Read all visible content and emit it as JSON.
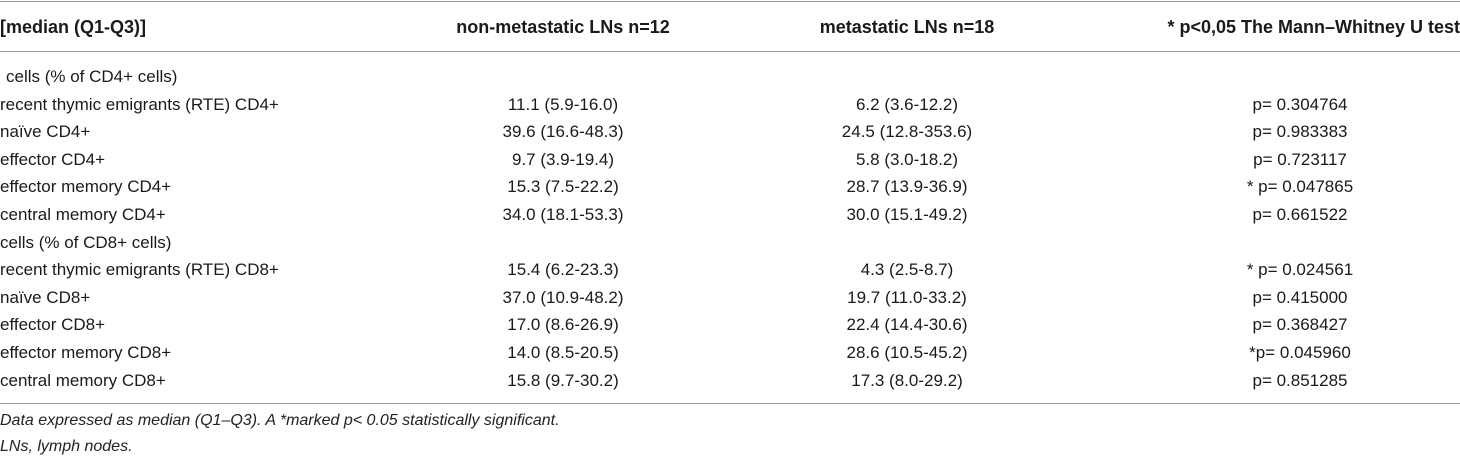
{
  "table": {
    "headers": [
      "[median (Q1-Q3)]",
      "non-metastatic LNs n=12",
      "metastatic LNs n=18",
      "* p<0,05 The Mann–Whitney U test"
    ],
    "rows": [
      {
        "type": "section",
        "cells": [
          " cells (% of CD4+ cells)",
          "",
          "",
          ""
        ]
      },
      {
        "type": "data",
        "cells": [
          "recent thymic emigrants (RTE) CD4+",
          "11.1 (5.9-16.0)",
          "6.2 (3.6-12.2)",
          "p= 0.304764"
        ]
      },
      {
        "type": "data",
        "cells": [
          "naïve CD4+",
          "39.6 (16.6-48.3)",
          "24.5 (12.8-353.6)",
          "p= 0.983383"
        ]
      },
      {
        "type": "data",
        "cells": [
          "effector CD4+",
          "9.7 (3.9-19.4)",
          "5.8 (3.0-18.2)",
          "p= 0.723117"
        ]
      },
      {
        "type": "data",
        "cells": [
          "effector memory CD4+",
          "15.3 (7.5-22.2)",
          "28.7 (13.9-36.9)",
          "* p= 0.047865"
        ]
      },
      {
        "type": "data",
        "cells": [
          "central memory CD4+",
          "34.0 (18.1-53.3)",
          "30.0 (15.1-49.2)",
          "p= 0.661522"
        ]
      },
      {
        "type": "section",
        "cells": [
          "cells (% of CD8+ cells)",
          "",
          "",
          ""
        ]
      },
      {
        "type": "data",
        "cells": [
          "recent thymic emigrants (RTE) CD8+",
          "15.4 (6.2-23.3)",
          "4.3 (2.5-8.7)",
          "* p= 0.024561"
        ]
      },
      {
        "type": "data",
        "cells": [
          "naïve CD8+",
          "37.0 (10.9-48.2)",
          "19.7 (11.0-33.2)",
          "p= 0.415000"
        ]
      },
      {
        "type": "data",
        "cells": [
          "effector CD8+",
          "17.0 (8.6-26.9)",
          "22.4 (14.4-30.6)",
          "p= 0.368427"
        ]
      },
      {
        "type": "data",
        "cells": [
          "effector memory CD8+",
          "14.0 (8.5-20.5)",
          "28.6 (10.5-45.2)",
          "*p= 0.045960"
        ]
      },
      {
        "type": "data",
        "cells": [
          "central memory CD8+",
          "15.8 (9.7-30.2)",
          "17.3 (8.0-29.2)",
          "p= 0.851285"
        ]
      }
    ]
  },
  "footnotes": [
    "Data expressed as median (Q1–Q3). A *marked p< 0.05 statistically significant.",
    "LNs, lymph nodes."
  ]
}
